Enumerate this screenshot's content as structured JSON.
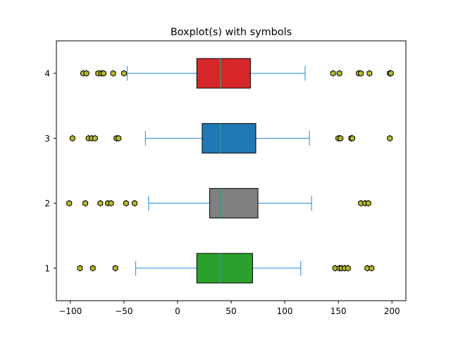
{
  "chart_data": {
    "type": "boxplot",
    "orientation": "horizontal",
    "title": "Boxplot(s) with symbols",
    "xlabel": "",
    "ylabel": "",
    "xlim": [
      -113,
      213
    ],
    "ylim": [
      0.5,
      4.5
    ],
    "x_ticks": [
      -100,
      -50,
      0,
      50,
      100,
      150,
      200
    ],
    "x_tick_labels": [
      "−100",
      "−50",
      "0",
      "50",
      "100",
      "150",
      "200"
    ],
    "y_ticks": [
      1,
      2,
      3,
      4
    ],
    "y_tick_labels": [
      "1",
      "2",
      "3",
      "4"
    ],
    "grid": false,
    "whisker_color": "#1e88e5",
    "median_color": "#2ca089",
    "flier_color": "#b5b82a",
    "boxes": [
      {
        "position": 1,
        "color": "#2ca02c",
        "whisker_low": -39,
        "q1": 18,
        "median": 40,
        "q3": 70,
        "whisker_high": 115,
        "fliers": [
          -91,
          -79,
          -58,
          147,
          151,
          153,
          156,
          159,
          177,
          181
        ]
      },
      {
        "position": 2,
        "color": "#808080",
        "whisker_low": -27,
        "q1": 30,
        "median": 40,
        "q3": 75,
        "whisker_high": 125,
        "fliers": [
          -101,
          -86,
          -72,
          -65,
          -62,
          -48,
          -40,
          171,
          175,
          178
        ]
      },
      {
        "position": 3,
        "color": "#1f77b4",
        "whisker_low": -30,
        "q1": 23,
        "median": 40,
        "q3": 73,
        "whisker_high": 123,
        "fliers": [
          -98,
          -83,
          -80,
          -77,
          -57,
          -55,
          150,
          152,
          162,
          163,
          198
        ]
      },
      {
        "position": 4,
        "color": "#d62728",
        "whisker_low": -47,
        "q1": 18,
        "median": 40,
        "q3": 68,
        "whisker_high": 119,
        "fliers": [
          -88,
          -85,
          -74,
          -71,
          -69,
          -60,
          -50,
          145,
          151,
          169,
          171,
          179,
          198,
          199
        ]
      }
    ]
  }
}
